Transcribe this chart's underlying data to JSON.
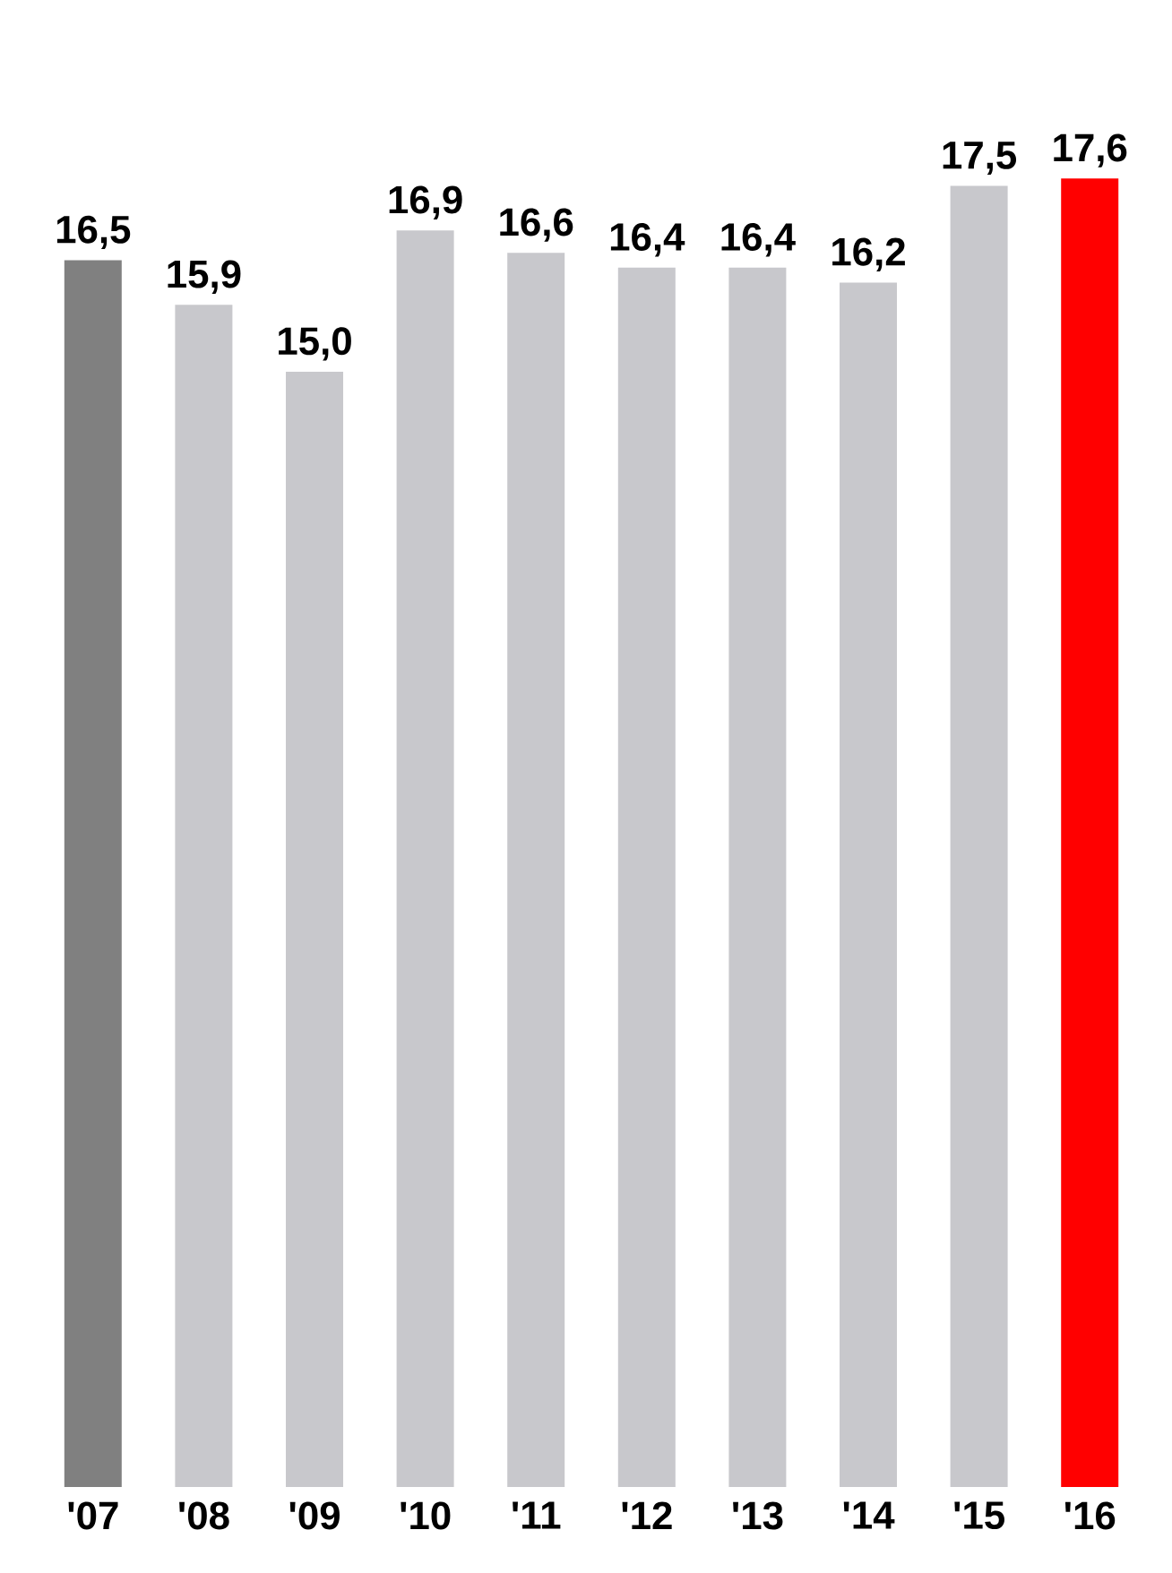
{
  "chart_data": {
    "type": "bar",
    "categories": [
      "'07",
      "'08",
      "'09",
      "'10",
      "'11",
      "'12",
      "'13",
      "'14",
      "'15",
      "'16"
    ],
    "values": [
      16.5,
      15.9,
      15.0,
      16.9,
      16.6,
      16.4,
      16.4,
      16.2,
      17.5,
      17.6
    ],
    "value_labels": [
      "16,5",
      "15,9",
      "15,0",
      "16,9",
      "16,6",
      "16,4",
      "16,4",
      "16,2",
      "17,5",
      "17,6"
    ],
    "colors": [
      "#808080",
      "#c8c8cc",
      "#c8c8cc",
      "#c8c8cc",
      "#c8c8cc",
      "#c8c8cc",
      "#c8c8cc",
      "#c8c8cc",
      "#c8c8cc",
      "#ff0000"
    ]
  }
}
